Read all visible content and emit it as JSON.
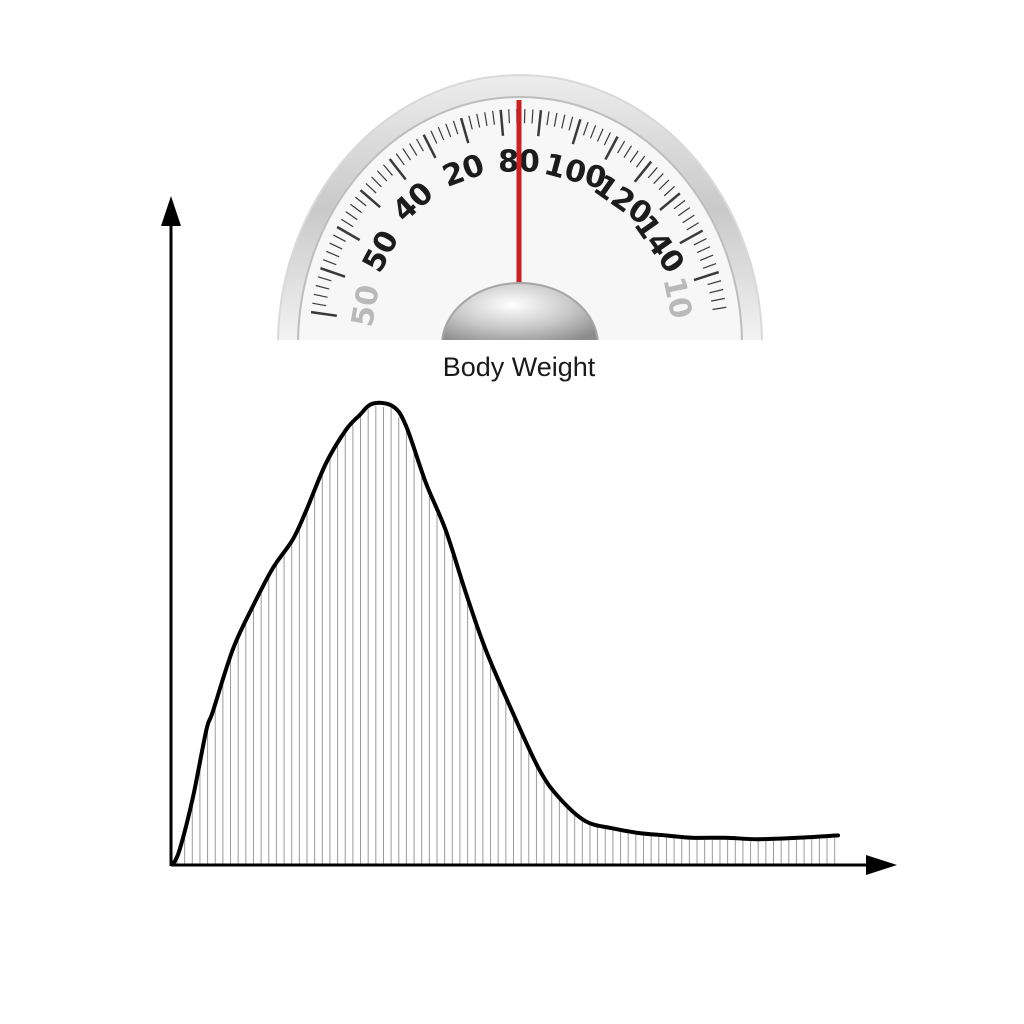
{
  "chart_data": {
    "type": "area",
    "title": "Body Weight",
    "xlabel": "",
    "ylabel": "",
    "axis_ticks": false,
    "grid": false,
    "fill": "vertical hatch lines under curve",
    "x_range": [
      0,
      100
    ],
    "y_range": [
      0,
      100
    ],
    "curve": {
      "x": [
        0,
        1,
        3,
        5,
        6,
        9,
        12,
        15,
        18,
        20,
        23,
        26,
        28,
        30,
        33,
        35,
        38,
        41,
        44,
        47,
        51,
        55,
        58,
        62,
        66,
        70,
        74,
        78,
        83,
        88,
        94,
        100
      ],
      "y": [
        0,
        3,
        14,
        28,
        32,
        45,
        54,
        62,
        68,
        74,
        84,
        91,
        94,
        96.5,
        96,
        92,
        80,
        70,
        57,
        45,
        32,
        20,
        14,
        9,
        7.5,
        6.5,
        6,
        5.5,
        5.5,
        5.2,
        5.5,
        6
      ]
    }
  },
  "scale": {
    "labels": [
      "50",
      "40",
      "20",
      "80",
      "100",
      "120",
      "140"
    ],
    "faded_labels": [
      "50",
      "10"
    ],
    "needle_color": "#cc1f1f",
    "icon": "bathroom-scale-dial-icon"
  },
  "colors": {
    "curve": "#000000",
    "hatch": "#9a9a9a",
    "axis": "#000000"
  }
}
